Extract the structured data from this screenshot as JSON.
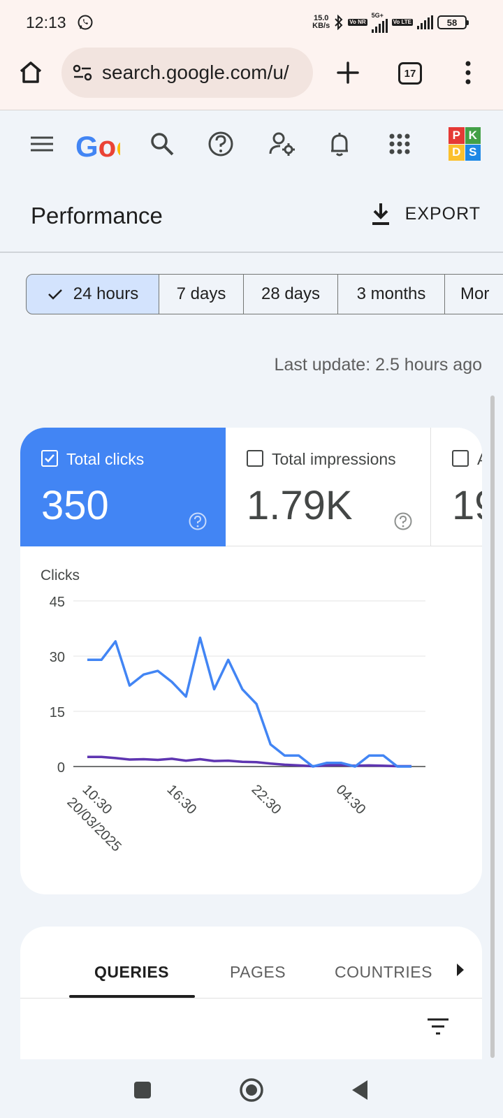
{
  "status_bar": {
    "time": "12:13",
    "net_speed_value": "15.0",
    "net_speed_unit": "KB/s",
    "badge1": "Vo NR",
    "badge2_top": "5G+",
    "badge3": "Vo LTE",
    "battery": "58"
  },
  "browser": {
    "url": "search.google.com/u/",
    "tab_count": "17"
  },
  "header": {
    "logo_text": "Go",
    "avatar_letters": [
      "P",
      "K",
      "D",
      "S"
    ],
    "avatar_colors": [
      "#e53935",
      "#43a047",
      "#fbc02d",
      "#1e88e5"
    ]
  },
  "page": {
    "title": "Performance",
    "export_label": "EXPORT"
  },
  "ranges": {
    "items": [
      "24 hours",
      "7 days",
      "28 days",
      "3 months",
      "Mor"
    ],
    "selected": "24 hours"
  },
  "last_update": "Last update: 2.5 hours ago",
  "metrics": [
    {
      "label": "Total clicks",
      "value": "350",
      "selected": true
    },
    {
      "label": "Total impressions",
      "value": "1.79K",
      "selected": false
    },
    {
      "label": "A",
      "value": "19",
      "selected": false
    }
  ],
  "chart_data": {
    "type": "line",
    "ylabel": "Clicks",
    "ylim": [
      0,
      45
    ],
    "yticks": [
      0,
      15,
      30,
      45
    ],
    "xtick_labels": [
      {
        "label": "10:30",
        "sub": "20/03/2025",
        "index": 0
      },
      {
        "label": "16:30",
        "index": 6
      },
      {
        "label": "22:30",
        "index": 12
      },
      {
        "label": "04:30",
        "index": 18
      }
    ],
    "series": [
      {
        "color": "#4285f4",
        "values": [
          29,
          29,
          34,
          22,
          25,
          26,
          23,
          19,
          35,
          21,
          29,
          21,
          17,
          6,
          3,
          3,
          0,
          1,
          1,
          0,
          3,
          3,
          0,
          0
        ]
      },
      {
        "color": "#5e35b1",
        "values": [
          2.6,
          2.6,
          2.3,
          1.9,
          2.0,
          1.8,
          2.1,
          1.6,
          2.0,
          1.5,
          1.6,
          1.3,
          1.2,
          0.8,
          0.5,
          0.3,
          0.1,
          0.3,
          0.4,
          0.2,
          0.3,
          0.2,
          0.1,
          0.1
        ]
      }
    ]
  },
  "tabs": {
    "items": [
      "QUERIES",
      "PAGES",
      "COUNTRIES"
    ],
    "active": "QUERIES"
  }
}
